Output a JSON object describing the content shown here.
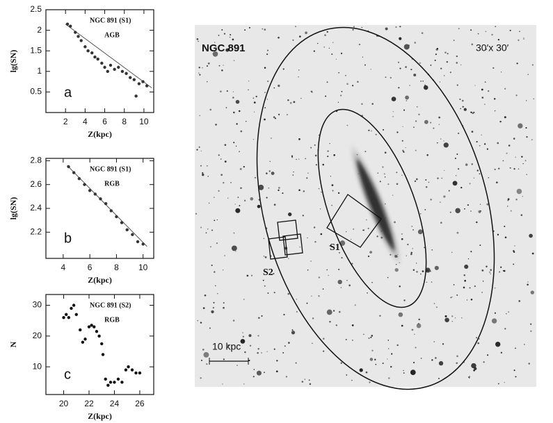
{
  "chart_data": [
    {
      "type": "scatter",
      "title": "NGC 891 (S1)",
      "population": "AGB",
      "panel_label": "a",
      "x_label": "Z(kpc)",
      "y_label": "lg(SN)",
      "x": [
        2.2,
        2.5,
        3,
        3.3,
        3.6,
        4,
        4.3,
        4.7,
        5,
        5.3,
        5.7,
        6,
        6.3,
        6.6,
        7,
        7.4,
        7.8,
        8.2,
        8.6,
        9,
        9.2,
        9.5,
        9.9,
        10.3
      ],
      "values": [
        2.15,
        2.1,
        1.95,
        1.85,
        1.75,
        1.6,
        1.5,
        1.45,
        1.35,
        1.3,
        1.2,
        1.1,
        1.0,
        1.15,
        1.05,
        1.1,
        1.0,
        0.95,
        0.85,
        0.8,
        0.4,
        0.7,
        0.75,
        0.65
      ],
      "fit_line": {
        "x": [
          2,
          10.8
        ],
        "values": [
          2.15,
          0.6
        ]
      },
      "color": "#333333",
      "xlim": [
        0,
        11
      ],
      "ylim": [
        0,
        2.5
      ],
      "xticks": [
        2,
        4,
        6,
        8,
        10
      ],
      "yticks": [
        0.5,
        1,
        1.5,
        2,
        2.5
      ]
    },
    {
      "type": "scatter",
      "title": "NGC 891 (S1)",
      "population": "RGB",
      "panel_label": "b",
      "x_label": "Z(kpc)",
      "y_label": "lg(SN)",
      "x": [
        4.4,
        4.8,
        5.2,
        5.6,
        6,
        6.4,
        6.8,
        7.2,
        7.6,
        8,
        8.4,
        8.8,
        9.2,
        9.6,
        10
      ],
      "values": [
        2.75,
        2.7,
        2.65,
        2.6,
        2.55,
        2.52,
        2.48,
        2.44,
        2.38,
        2.33,
        2.28,
        2.22,
        2.18,
        2.12,
        2.1
      ],
      "fit_line": {
        "x": [
          4.3,
          10.3
        ],
        "values": [
          2.76,
          2.08
        ]
      },
      "color": "#333333",
      "xlim": [
        2.7,
        10.8
      ],
      "ylim": [
        1.98,
        2.82
      ],
      "xticks": [
        4,
        6,
        8,
        10
      ],
      "yticks": [
        2.2,
        2.4,
        2.6,
        2.8
      ]
    },
    {
      "type": "scatter",
      "title": "NGC 891 (S2)",
      "population": "RGB",
      "panel_label": "c",
      "x_label": "Z(kpc)",
      "y_label": "N",
      "x": [
        20,
        20.2,
        20.4,
        20.6,
        20.8,
        21,
        21.3,
        21.5,
        21.7,
        22,
        22.2,
        22.4,
        22.6,
        22.8,
        23,
        23.1,
        23.3,
        23.5,
        23.7,
        24,
        24.3,
        24.6,
        24.9,
        25.1,
        25.4,
        25.7,
        26
      ],
      "values": [
        26,
        27,
        26,
        29,
        30,
        27,
        22,
        18,
        19,
        23,
        23.5,
        23,
        21.5,
        20,
        17.5,
        14,
        6,
        4,
        5,
        5,
        6,
        5,
        9,
        10,
        9,
        8,
        8
      ],
      "color": "#111111",
      "xlim": [
        18.6,
        27.1
      ],
      "ylim": [
        1,
        33.5
      ],
      "xticks": [
        20,
        22,
        24,
        26
      ],
      "yticks": [
        10,
        20,
        30
      ]
    }
  ],
  "image": {
    "name": "NGC 891",
    "field": "30′x 30′",
    "field_s1": "S1",
    "field_s2": "S2",
    "scale": "10 kpc"
  }
}
